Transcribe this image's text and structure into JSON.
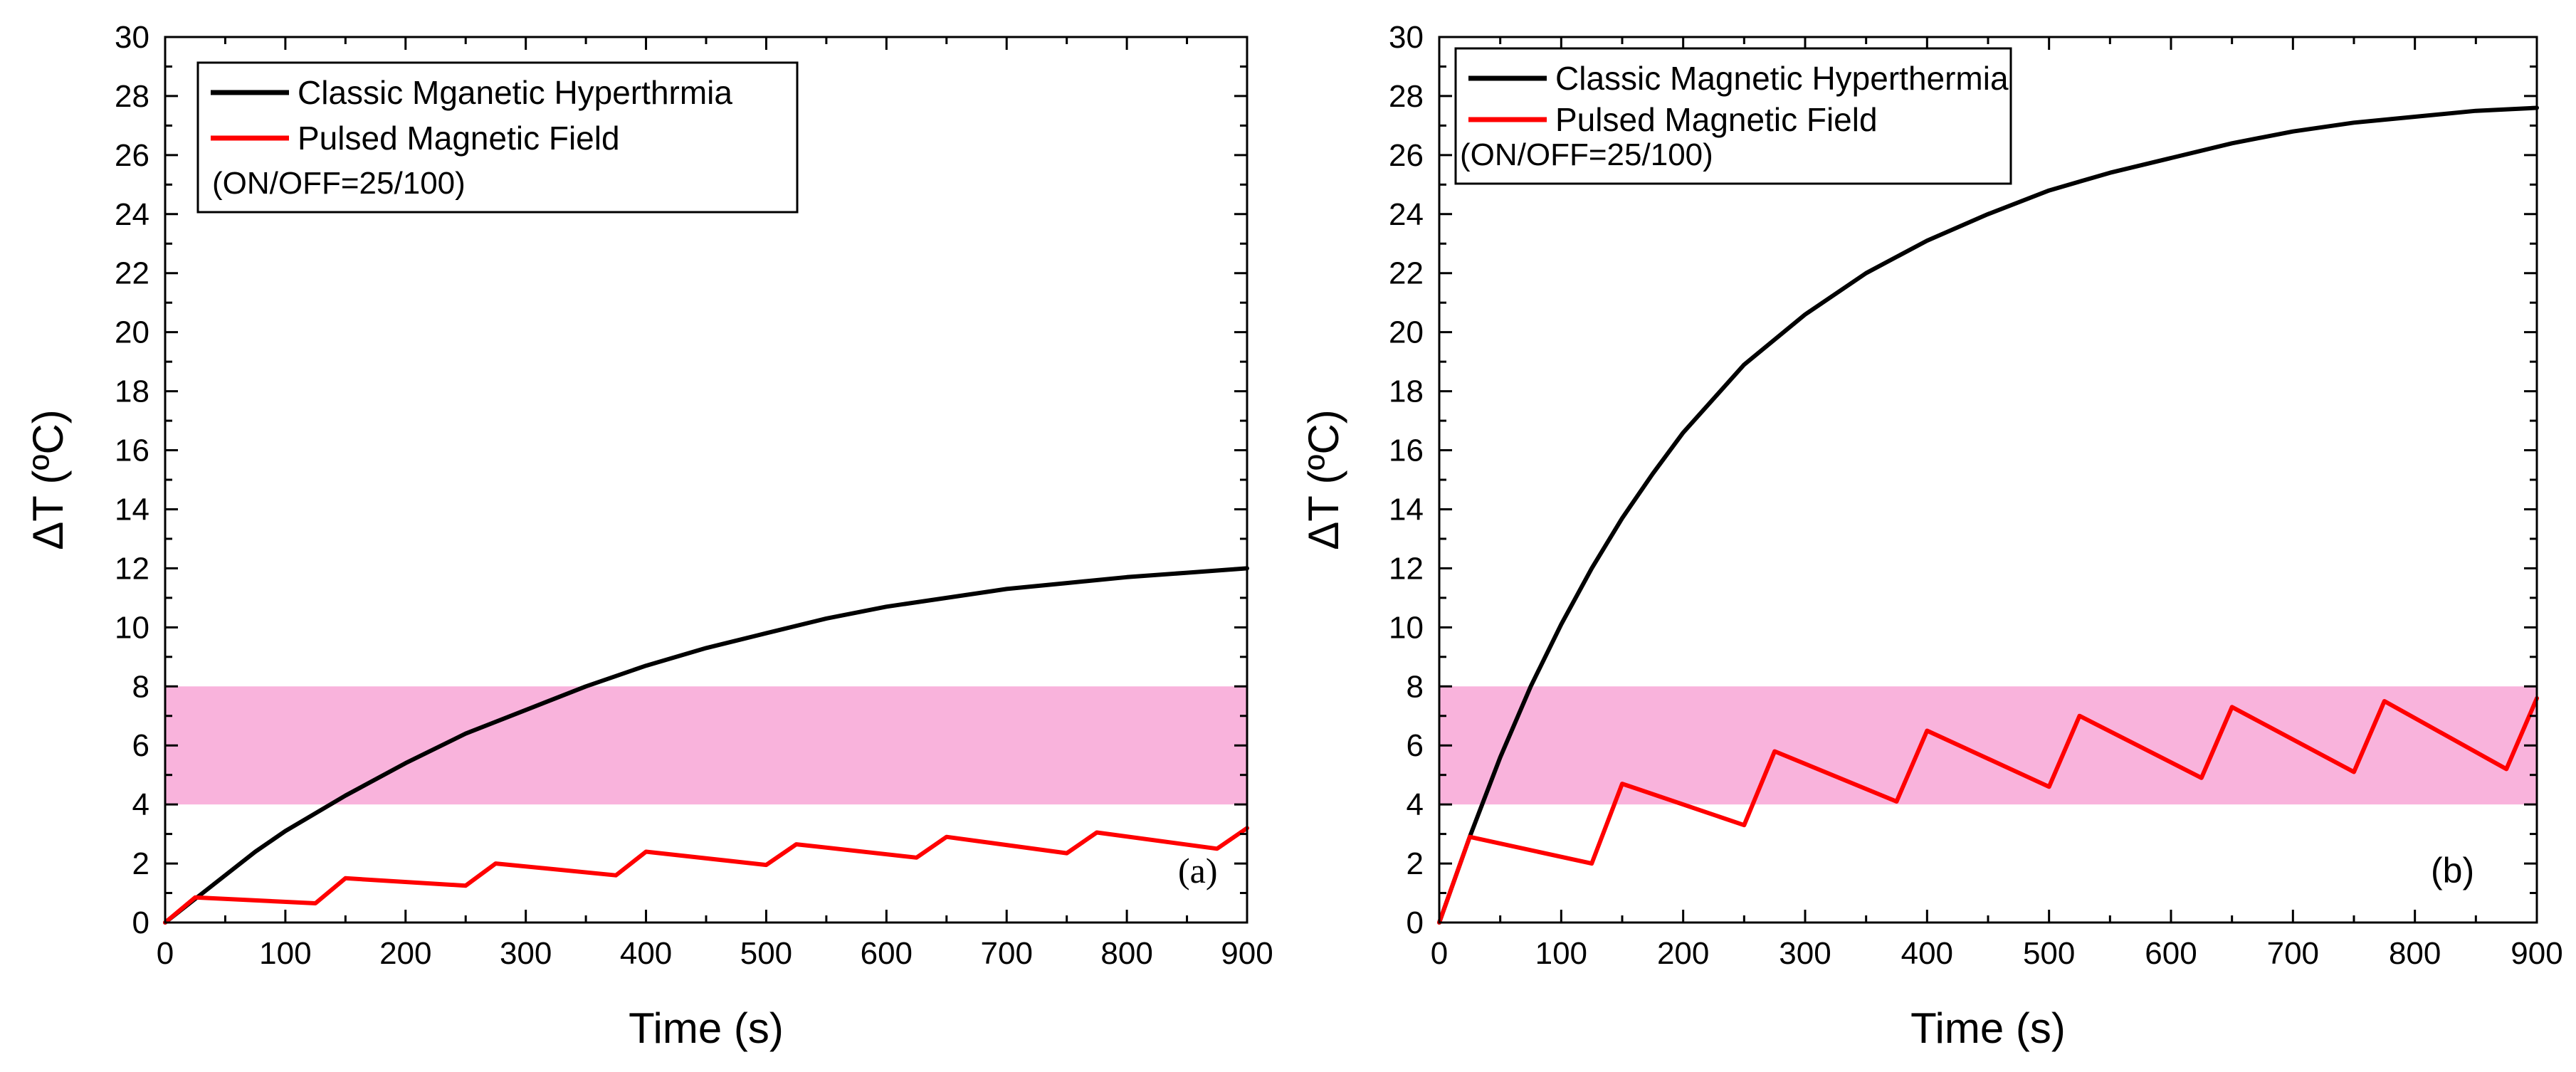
{
  "chart_data": [
    {
      "type": "line",
      "panel_label": "(a)",
      "xlabel": "Time (s)",
      "ylabel": "ΔT (ºC)",
      "xlim": [
        0,
        900
      ],
      "ylim": [
        0,
        30
      ],
      "xticks": [
        0,
        100,
        200,
        300,
        400,
        500,
        600,
        700,
        800,
        900
      ],
      "yticks": [
        0,
        2,
        4,
        6,
        8,
        10,
        12,
        14,
        16,
        18,
        20,
        22,
        24,
        26,
        28,
        30
      ],
      "shaded_band": {
        "y_from": 4,
        "y_to": 8,
        "color": "#f9b3dc"
      },
      "legend": {
        "placement": "top-left",
        "entries": [
          {
            "label": "Classic Mganetic Hyperthrmia",
            "color": "#000000"
          },
          {
            "label": "Pulsed Magnetic Field",
            "color": "#ff0000"
          }
        ],
        "note": "(ON/OFF=25/100)"
      },
      "series": [
        {
          "name": "Classic Mganetic Hyperthrmia",
          "color": "#000000",
          "x": [
            0,
            25,
            50,
            75,
            100,
            150,
            200,
            250,
            300,
            350,
            400,
            450,
            500,
            550,
            600,
            650,
            700,
            750,
            800,
            850,
            900
          ],
          "y": [
            0,
            0.8,
            1.6,
            2.4,
            3.1,
            4.3,
            5.4,
            6.4,
            7.2,
            8.0,
            8.7,
            9.3,
            9.8,
            10.3,
            10.7,
            11.0,
            11.3,
            11.5,
            11.7,
            11.85,
            12.0
          ]
        },
        {
          "name": "Pulsed Magnetic Field",
          "color": "#ff0000",
          "x": [
            0,
            25,
            125,
            150,
            250,
            275,
            375,
            400,
            500,
            525,
            625,
            650,
            750,
            775,
            875,
            900
          ],
          "y": [
            0,
            0.85,
            0.65,
            1.5,
            1.25,
            2.0,
            1.6,
            2.4,
            1.95,
            2.65,
            2.2,
            2.9,
            2.35,
            3.05,
            2.5,
            3.2
          ]
        }
      ]
    },
    {
      "type": "line",
      "panel_label": "(b)",
      "xlabel": "Time (s)",
      "ylabel": "ΔT (ºC)",
      "xlim": [
        0,
        900
      ],
      "ylim": [
        0,
        30
      ],
      "xticks": [
        0,
        100,
        200,
        300,
        400,
        500,
        600,
        700,
        800,
        900
      ],
      "yticks": [
        0,
        2,
        4,
        6,
        8,
        10,
        12,
        14,
        16,
        18,
        20,
        22,
        24,
        26,
        28,
        30
      ],
      "shaded_band": {
        "y_from": 4,
        "y_to": 8,
        "color": "#f9b3dc"
      },
      "legend": {
        "placement": "top-left",
        "entries": [
          {
            "label": "Classic Magnetic Hyperthermia",
            "color": "#000000"
          },
          {
            "label": "Pulsed Magnetic Field",
            "color": "#ff0000"
          }
        ],
        "note": "(ON/OFF=25/100)"
      },
      "series": [
        {
          "name": "Classic Magnetic Hyperthermia",
          "color": "#000000",
          "x": [
            0,
            25,
            50,
            75,
            100,
            125,
            150,
            175,
            200,
            250,
            300,
            350,
            400,
            450,
            500,
            550,
            600,
            650,
            700,
            750,
            800,
            850,
            900
          ],
          "y": [
            0,
            2.9,
            5.6,
            8.0,
            10.1,
            12.0,
            13.7,
            15.2,
            16.6,
            18.9,
            20.6,
            22.0,
            23.1,
            24.0,
            24.8,
            25.4,
            25.9,
            26.4,
            26.8,
            27.1,
            27.3,
            27.5,
            27.6
          ]
        },
        {
          "name": "Pulsed Magnetic Field",
          "color": "#ff0000",
          "x": [
            0,
            25,
            125,
            150,
            250,
            275,
            375,
            400,
            500,
            525,
            625,
            650,
            750,
            775,
            875,
            900
          ],
          "y": [
            0,
            2.9,
            2.0,
            4.7,
            3.3,
            5.8,
            4.1,
            6.5,
            4.6,
            7.0,
            4.9,
            7.3,
            5.1,
            7.5,
            5.2,
            7.6
          ]
        }
      ]
    }
  ]
}
